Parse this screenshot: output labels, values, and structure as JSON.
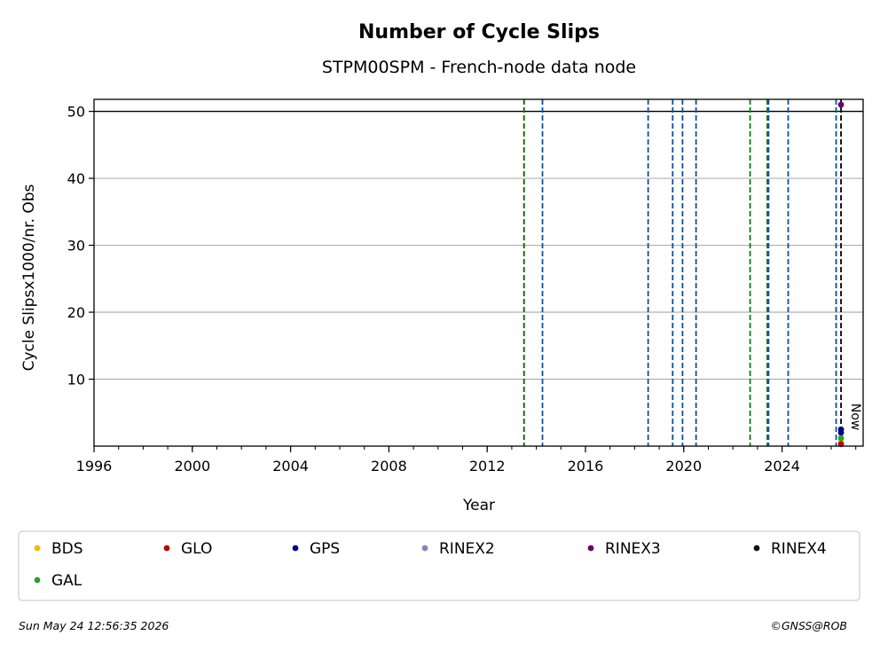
{
  "chart_data": {
    "type": "scatter",
    "title": "Number of Cycle Slips",
    "subtitle": "STPM00SPM - French-node data node",
    "xlabel": "Year",
    "ylabel": "Cycle Slipsx1000/nr. Obs",
    "xlim": [
      1996,
      2027.3
    ],
    "ylim": [
      0,
      51.8
    ],
    "x_ticks": [
      "1996",
      "2000",
      "2004",
      "2008",
      "2012",
      "2016",
      "2020",
      "2024"
    ],
    "y_ticks": [
      "10",
      "20",
      "30",
      "40",
      "50"
    ],
    "grid": "y",
    "reference_line_y": 50,
    "now_x": 2026.4,
    "now_label": "Now",
    "event_lines": [
      {
        "x": 2013.5,
        "color": "#c00000",
        "style": "dashed"
      },
      {
        "x": 2013.5,
        "color": "#0a7d0a",
        "style": "dashed"
      },
      {
        "x": 2014.25,
        "color": "#0a50a0",
        "style": "dashed"
      },
      {
        "x": 2018.55,
        "color": "#0a50a0",
        "style": "dashed"
      },
      {
        "x": 2019.55,
        "color": "#0a50a0",
        "style": "dashed"
      },
      {
        "x": 2019.95,
        "color": "#0a50a0",
        "style": "dashed"
      },
      {
        "x": 2020.5,
        "color": "#0a50a0",
        "style": "dashed"
      },
      {
        "x": 2022.7,
        "color": "#0a7d0a",
        "style": "dashed"
      },
      {
        "x": 2023.4,
        "color": "#0a7d0a",
        "style": "dashed"
      },
      {
        "x": 2023.45,
        "color": "#0a50a0",
        "style": "dashed"
      },
      {
        "x": 2024.25,
        "color": "#0a50a0",
        "style": "dashed"
      },
      {
        "x": 2026.2,
        "color": "#0a50a0",
        "style": "dashed"
      }
    ],
    "series": [
      {
        "name": "BDS",
        "color": "#f5b800",
        "points": [
          [
            2026.4,
            0.6
          ]
        ]
      },
      {
        "name": "GLO",
        "color": "#c00000",
        "points": [
          [
            2026.4,
            0.3
          ]
        ]
      },
      {
        "name": "GPS",
        "color": "#00008b",
        "points": [
          [
            2026.4,
            2.0
          ],
          [
            2026.4,
            2.5
          ]
        ]
      },
      {
        "name": "RINEX2",
        "color": "#8c7fc0",
        "points": []
      },
      {
        "name": "RINEX3",
        "color": "#6a006a",
        "points": [
          [
            2026.4,
            51.0
          ]
        ]
      },
      {
        "name": "RINEX4",
        "color": "#1a0a1a",
        "points": []
      },
      {
        "name": "GAL",
        "color": "#2ca02c",
        "points": [
          [
            2026.4,
            1.2
          ]
        ]
      }
    ]
  },
  "footer": {
    "timestamp": "Sun May 24 12:56:35 2026",
    "credit": "©GNSS@ROB"
  }
}
